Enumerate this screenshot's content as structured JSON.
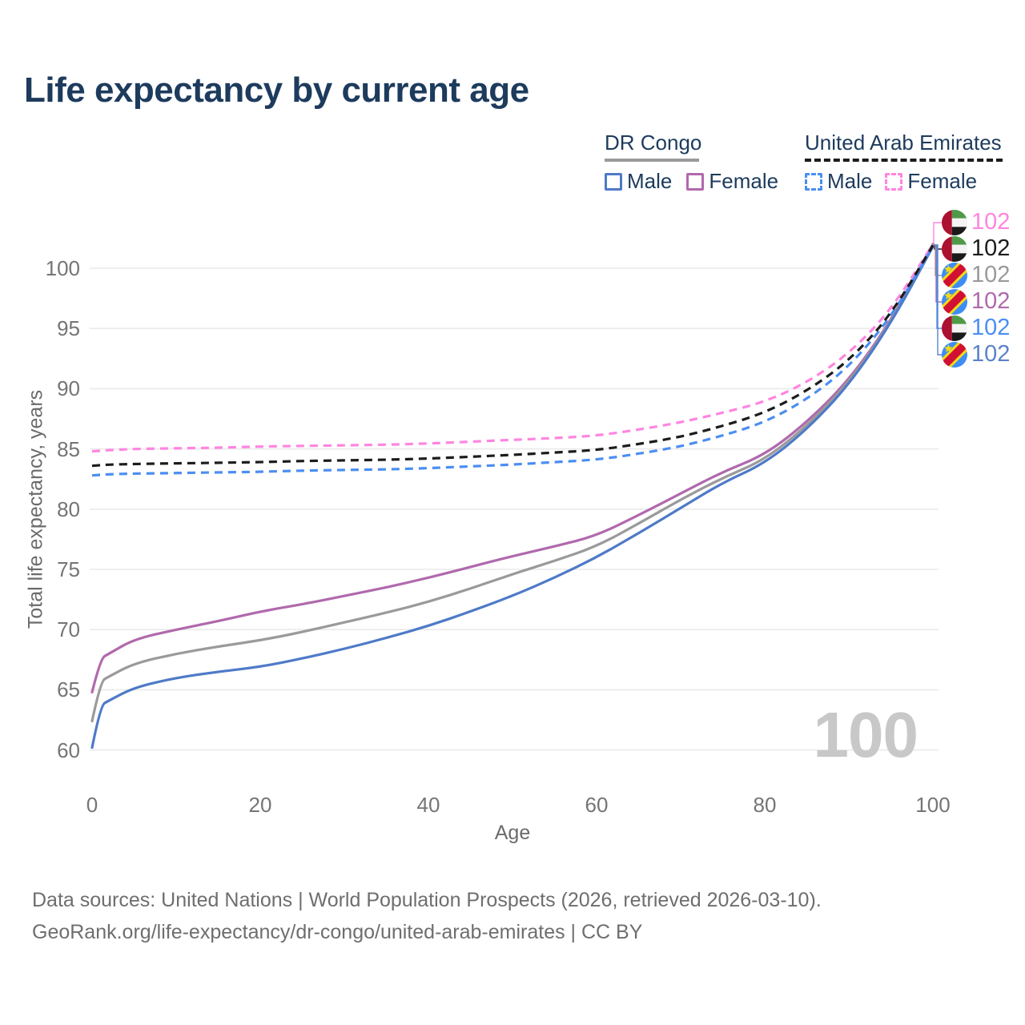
{
  "title": "Life expectancy by current age",
  "watermark": "100",
  "legend": {
    "groups": [
      {
        "name": "DR Congo",
        "style": "solid",
        "line_color": "#9a9a9a",
        "items": [
          {
            "label": "Male",
            "color": "#4e7ac8"
          },
          {
            "label": "Female",
            "color": "#b069ad"
          }
        ]
      },
      {
        "name": "United Arab Emirates",
        "style": "dashed",
        "line_color": "#1c1c1c",
        "items": [
          {
            "label": "Male",
            "color": "#4b8ef2"
          },
          {
            "label": "Female",
            "color": "#ff85e0"
          }
        ]
      }
    ]
  },
  "footer": {
    "line1": "Data sources: United Nations | World Population Prospects (2026, retrieved 2026-03-10).",
    "line2": "GeoRank.org/life-expectancy/dr-congo/united-arab-emirates | CC BY"
  },
  "chart_data": {
    "type": "line",
    "title": "Life expectancy by current age",
    "xlabel": "Age",
    "ylabel": "Total life expectancy, years",
    "xlim": [
      0,
      100
    ],
    "ylim": [
      58.5,
      103.5
    ],
    "x_ticks": [
      0,
      20,
      40,
      60,
      80,
      100
    ],
    "y_ticks": [
      60,
      65,
      70,
      75,
      80,
      85,
      90,
      95,
      100
    ],
    "grid": "horizontal",
    "legend_position": "top-right",
    "x": [
      0,
      1,
      2,
      5,
      10,
      15,
      20,
      25,
      30,
      35,
      40,
      45,
      50,
      55,
      60,
      65,
      70,
      75,
      80,
      85,
      90,
      95,
      100
    ],
    "series": [
      {
        "name": "DR Congo Female",
        "country": "DR Congo",
        "sex": "Female",
        "style": "solid",
        "color": "#b069ad",
        "values": [
          64.8,
          67.6,
          68.0,
          69.2,
          70.0,
          70.7,
          71.5,
          72.1,
          72.8,
          73.5,
          74.3,
          75.2,
          76.1,
          76.9,
          77.8,
          79.5,
          81.3,
          83.1,
          84.5,
          87.2,
          90.7,
          95.6,
          102.0
        ]
      },
      {
        "name": "DR Congo Both sexes",
        "country": "DR Congo",
        "sex": "Both",
        "style": "solid",
        "color": "#9a9a9a",
        "values": [
          62.4,
          65.7,
          66.1,
          67.2,
          68.0,
          68.6,
          69.1,
          69.8,
          70.6,
          71.4,
          72.3,
          73.4,
          74.6,
          75.7,
          76.9,
          78.8,
          80.8,
          82.6,
          84.1,
          86.9,
          90.5,
          95.5,
          101.9
        ]
      },
      {
        "name": "DR Congo Male",
        "country": "DR Congo",
        "sex": "Male",
        "style": "solid",
        "color": "#4e7ac8",
        "values": [
          60.2,
          63.7,
          64.1,
          65.2,
          66.0,
          66.5,
          66.9,
          67.6,
          68.4,
          69.3,
          70.3,
          71.5,
          72.8,
          74.3,
          76.0,
          78.0,
          80.1,
          82.2,
          83.8,
          86.6,
          90.3,
          95.4,
          101.8
        ]
      },
      {
        "name": "United Arab Emirates Female",
        "country": "United Arab Emirates",
        "sex": "Female",
        "style": "dashed",
        "color": "#ff85e0",
        "values": [
          84.8,
          84.85,
          84.9,
          85.0,
          85.05,
          85.1,
          85.2,
          85.25,
          85.3,
          85.35,
          85.45,
          85.6,
          85.75,
          85.9,
          86.1,
          86.6,
          87.2,
          88.0,
          88.9,
          90.5,
          92.9,
          96.5,
          102.0
        ]
      },
      {
        "name": "United Arab Emirates Male",
        "country": "United Arab Emirates",
        "sex": "Male",
        "style": "dashed",
        "color": "#4b8ef2",
        "values": [
          82.8,
          82.85,
          82.9,
          82.95,
          83.0,
          83.05,
          83.1,
          83.2,
          83.25,
          83.3,
          83.4,
          83.55,
          83.7,
          83.9,
          84.1,
          84.6,
          85.2,
          86.1,
          87.2,
          89.1,
          91.8,
          95.9,
          101.8
        ]
      },
      {
        "name": "United Arab Emirates Both sexes",
        "country": "United Arab Emirates",
        "sex": "Both",
        "style": "dashed",
        "color": "#1c1c1c",
        "values": [
          83.6,
          83.65,
          83.7,
          83.75,
          83.8,
          83.85,
          83.9,
          84.0,
          84.05,
          84.1,
          84.2,
          84.35,
          84.5,
          84.7,
          84.9,
          85.4,
          86.0,
          86.9,
          88.0,
          89.8,
          92.3,
          96.1,
          101.9
        ]
      }
    ],
    "end_labels": [
      {
        "series": "United Arab Emirates Female",
        "flag": "uae",
        "label": "102",
        "color": "#ff85e0"
      },
      {
        "series": "United Arab Emirates Both sexes",
        "flag": "uae",
        "label": "102",
        "color": "#1c1c1c"
      },
      {
        "series": "DR Congo Both sexes",
        "flag": "drc",
        "label": "102",
        "color": "#9a9a9a"
      },
      {
        "series": "DR Congo Female",
        "flag": "drc",
        "label": "102",
        "color": "#b069ad"
      },
      {
        "series": "United Arab Emirates Male",
        "flag": "uae",
        "label": "102",
        "color": "#4b8ef2"
      },
      {
        "series": "DR Congo Male",
        "flag": "drc",
        "label": "102",
        "color": "#5c83c9"
      }
    ],
    "flag_colors": {
      "uae": {
        "red": "#ab1130",
        "green": "#4f9a47",
        "white": "#f4f4f4",
        "black": "#1a1a1a"
      },
      "drc": {
        "blue": "#3d8df5",
        "yellow": "#f6d915",
        "red": "#d21034"
      }
    }
  }
}
